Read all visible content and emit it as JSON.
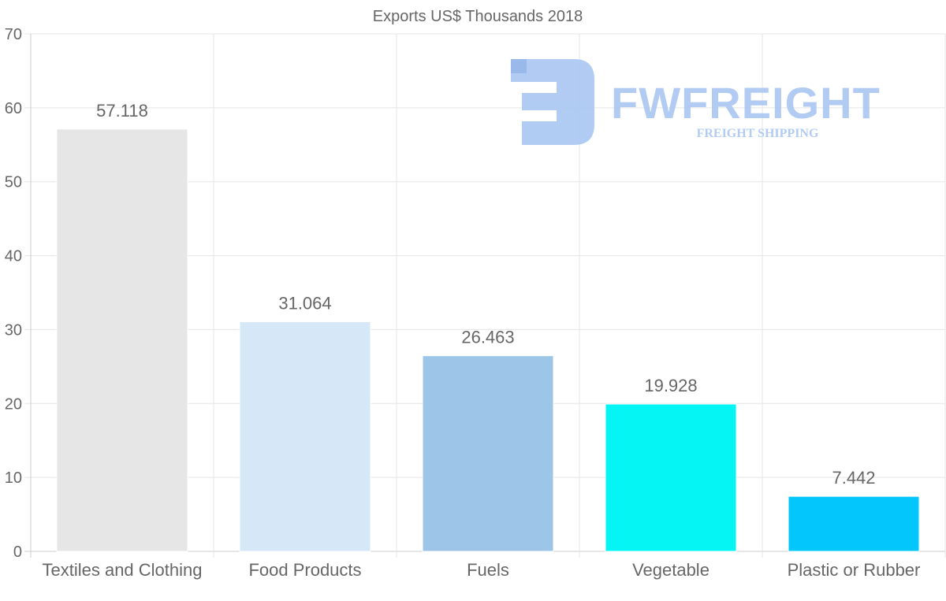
{
  "chart_data": {
    "type": "bar",
    "title": "Exports US$ Thousands 2018",
    "xlabel": "",
    "ylabel": "",
    "categories": [
      "Textiles and Clothing",
      "Food Products",
      "Fuels",
      "Vegetable",
      "Plastic or Rubber"
    ],
    "values": [
      57.118,
      31.064,
      26.463,
      19.928,
      7.442
    ],
    "value_labels": [
      "57.118",
      "31.064",
      "26.463",
      "19.928",
      "7.442"
    ],
    "colors": [
      "#e6e6e6",
      "#d6e7f8",
      "#9cc5e8",
      "#05f5f5",
      "#03c7fc"
    ],
    "ylim": [
      0,
      70
    ],
    "yticks": [
      0,
      10,
      20,
      30,
      40,
      50,
      60,
      70
    ],
    "grid": true,
    "legend": "none"
  },
  "watermark": {
    "brand": "FWFREIGHT",
    "tagline": "FREIGHT SHIPPING",
    "color": "#a9c6f2",
    "icon": "fw-logo-icon"
  },
  "colors": {
    "grid": "#e5e5e5",
    "axis": "#cccccc",
    "text": "#666666"
  }
}
